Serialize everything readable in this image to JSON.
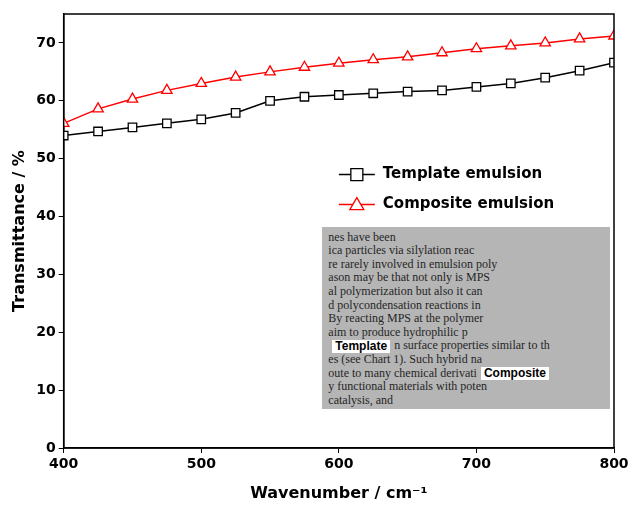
{
  "chart_data": {
    "type": "line",
    "x_label": "Wavenumber / cm⁻¹",
    "y_label": "Transmittance / %",
    "x": [
      400,
      425,
      450,
      475,
      500,
      525,
      550,
      575,
      600,
      625,
      650,
      675,
      700,
      725,
      750,
      775,
      800
    ],
    "series": [
      {
        "name": "Template emulsion",
        "color": "#000000",
        "marker": "square",
        "line_style": "solid",
        "values": [
          54,
          54.7,
          55.4,
          56.1,
          56.8,
          57.9,
          60,
          60.7,
          61,
          61.3,
          61.6,
          61.8,
          62.4,
          63,
          64,
          65.2,
          66.6
        ]
      },
      {
        "name": "Composite emulsion",
        "color": "#ff0000",
        "marker": "triangle",
        "line_style": "solid",
        "values": [
          56.1,
          58.6,
          60.3,
          61.8,
          63,
          64.1,
          65,
          65.8,
          66.5,
          67.1,
          67.6,
          68.3,
          69,
          69.5,
          70,
          70.7,
          71.2
        ]
      }
    ],
    "xlim": [
      400,
      800
    ],
    "xticks": [
      400,
      500,
      600,
      700,
      800
    ],
    "ylim": [
      0,
      75
    ],
    "yticks": [
      0,
      10,
      20,
      30,
      40,
      50,
      60,
      70
    ],
    "grid": false,
    "legend": "right",
    "annotations": [
      "Template",
      "Composite"
    ],
    "inset_text": [
      "nes have been",
      "ica particles via silylation reac",
      "re rarely involved in emulsion poly",
      "ason may be that not only is MPS",
      "al polymerization but also it can",
      "d polycondensation reactions in",
      "By reacting MPS at the polymer",
      "aim to produce hydrophilic p",
      "n surface properties similar to th",
      "es (see Chart 1). Such hybrid na",
      "oute to many chemical derivati",
      "y functional materials with poten",
      "catalysis, and"
    ]
  }
}
